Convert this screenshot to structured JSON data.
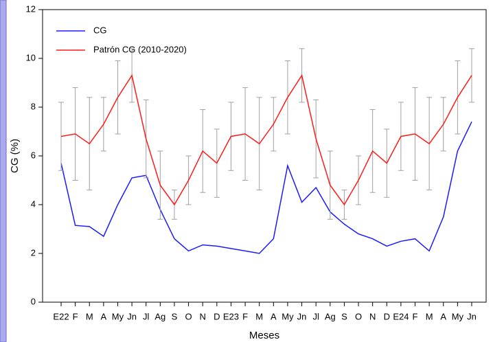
{
  "chart_data": {
    "type": "line",
    "xlabel": "Meses",
    "ylabel": "CG (%)",
    "categories": [
      "E22",
      "F",
      "M",
      "A",
      "My",
      "Jn",
      "Jl",
      "Ag",
      "S",
      "O",
      "N",
      "D",
      "E23",
      "F",
      "M",
      "A",
      "My",
      "Jn",
      "Jl",
      "Ag",
      "S",
      "O",
      "N",
      "D",
      "E24",
      "F",
      "M",
      "A",
      "My",
      "Jn"
    ],
    "ylim": [
      0,
      12
    ],
    "yticks": [
      0,
      2,
      4,
      6,
      8,
      10,
      12
    ],
    "legend": "upper left",
    "series": [
      {
        "name": "CG",
        "color": "#1a1aff",
        "values": [
          5.7,
          3.15,
          3.1,
          2.7,
          4.0,
          5.1,
          5.2,
          3.8,
          2.6,
          2.1,
          2.35,
          2.3,
          2.2,
          2.1,
          2.0,
          2.6,
          5.6,
          4.1,
          4.7,
          3.7,
          3.2,
          2.8,
          2.6,
          2.3,
          2.5,
          2.6,
          2.1,
          3.5,
          6.2,
          7.4
        ]
      },
      {
        "name": "Patrón CG (2010-2020)",
        "color": "#ff1a1a",
        "error_color": "#a0a0a0",
        "values": [
          6.8,
          6.9,
          6.5,
          7.3,
          8.4,
          9.3,
          6.7,
          4.8,
          4.0,
          5.0,
          6.2,
          5.7,
          6.8,
          6.9,
          6.5,
          7.3,
          8.4,
          9.3,
          6.7,
          4.8,
          4.0,
          5.0,
          6.2,
          5.7,
          6.8,
          6.9,
          6.5,
          7.3,
          8.4,
          9.3
        ],
        "error": [
          1.4,
          1.9,
          1.9,
          1.1,
          1.5,
          1.1,
          1.6,
          1.4,
          0.6,
          1.0,
          1.7,
          1.4,
          1.4,
          1.9,
          1.9,
          1.1,
          1.5,
          1.1,
          1.6,
          1.4,
          0.6,
          1.0,
          1.7,
          1.4,
          1.4,
          1.9,
          1.9,
          1.1,
          1.5,
          1.1
        ]
      }
    ]
  }
}
